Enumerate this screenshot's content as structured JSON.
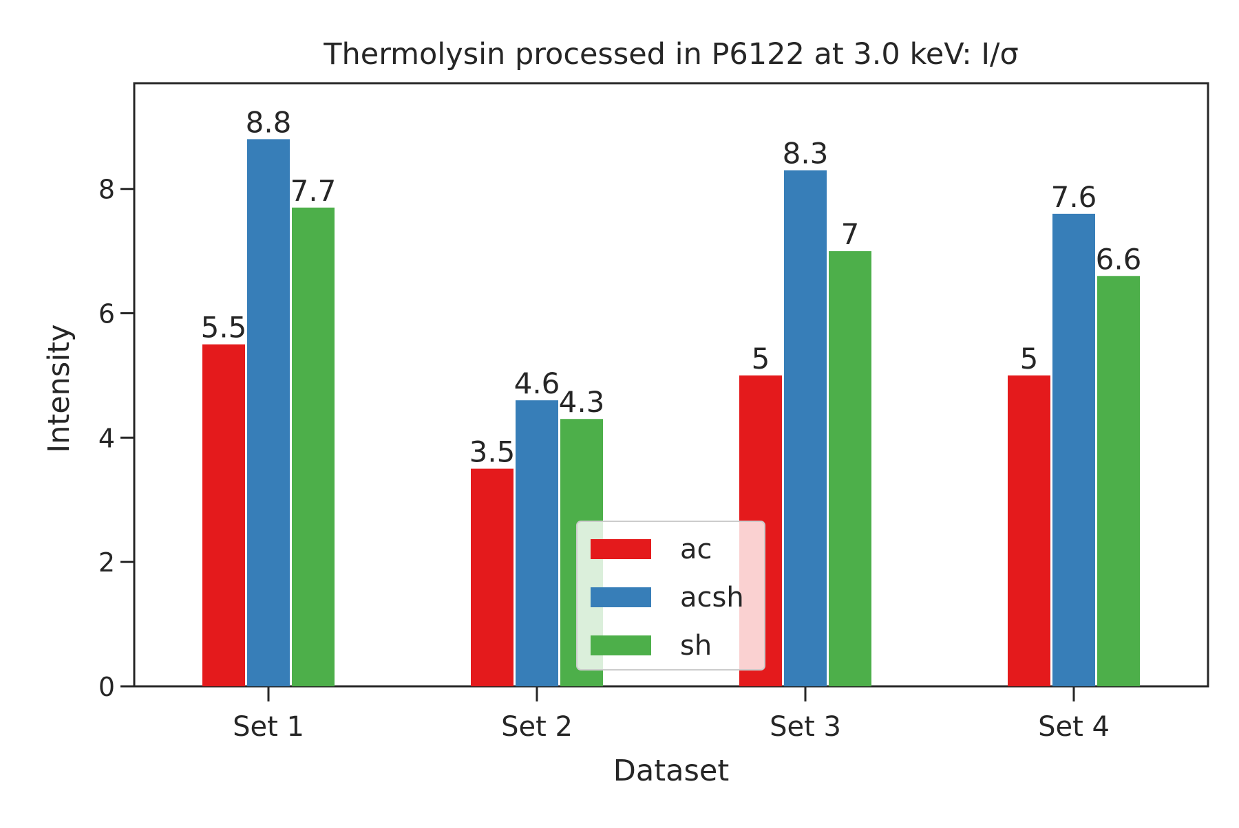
{
  "chart_data": {
    "type": "bar",
    "title": "Thermolysin processed in P6122 at 3.0 keV: I/σ",
    "xlabel": "Dataset",
    "ylabel": "Intensity",
    "categories": [
      "Set 1",
      "Set 2",
      "Set 3",
      "Set 4"
    ],
    "ylim": [
      0,
      9.7
    ],
    "yticks": [
      0,
      2,
      4,
      6,
      8
    ],
    "grid": false,
    "legend_position": "lower center",
    "series": [
      {
        "name": "ac",
        "color": "#e41a1c",
        "values": [
          5.5,
          3.5,
          5,
          5
        ],
        "labels": [
          "5.5",
          "3.5",
          "5",
          "5"
        ]
      },
      {
        "name": "acsh",
        "color": "#377eb8",
        "values": [
          8.8,
          4.6,
          8.3,
          7.6
        ],
        "labels": [
          "8.8",
          "4.6",
          "8.3",
          "7.6"
        ]
      },
      {
        "name": "sh",
        "color": "#4daf4a",
        "values": [
          7.7,
          4.3,
          7,
          6.6
        ],
        "labels": [
          "7.7",
          "4.3",
          "7",
          "6.6"
        ]
      }
    ]
  }
}
